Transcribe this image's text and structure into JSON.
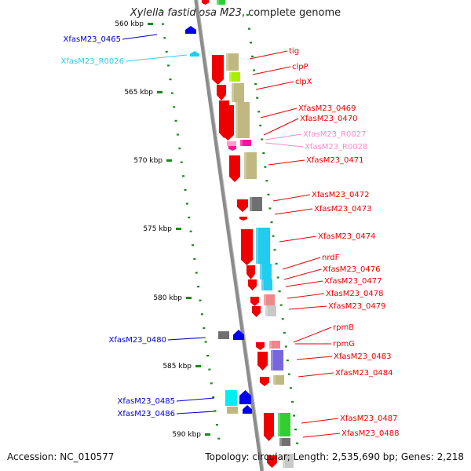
{
  "title": {
    "organism": "Xylella fastidiosa M23",
    "suffix": ", complete genome"
  },
  "footer": {
    "accession": "Accession: NC_010577",
    "summary": "Topology: circular; Length: 2,535,690 bp; Genes: 2,218"
  },
  "colors": {
    "backbone": "#8c8c8c",
    "tick_dot": "#1a8a1a",
    "label_blue": "#0000cc",
    "label_cyan": "#33ccee",
    "label_red": "#ee0000",
    "label_pink": "#ff88cc",
    "gene_red": "#ee0000",
    "gene_blue": "#0000ee",
    "gene_cyan": "#22ccee",
    "gene_pink": "#ff99cc",
    "cog_khaki": "#c0b880",
    "cog_green": "#33cc33",
    "cog_cyan": "#22ccee",
    "cog_gray": "#707070",
    "cog_lightgray": "#c8c8c8",
    "cog_purple": "#7766dd",
    "cog_pink": "#ee8888",
    "cog_magenta": "#ff1199",
    "cog_lime": "#aaee00"
  },
  "chart_data": {
    "type": "genome_map",
    "region_kbp": [
      560,
      591
    ],
    "tick_labels": [
      {
        "kbp": 560,
        "label": "560 kbp"
      },
      {
        "kbp": 565,
        "label": "565 kbp"
      },
      {
        "kbp": 570,
        "label": "570 kbp"
      },
      {
        "kbp": 575,
        "label": "575 kbp"
      },
      {
        "kbp": 580,
        "label": "580 kbp"
      },
      {
        "kbp": 585,
        "label": "585 kbp"
      },
      {
        "kbp": 590,
        "label": "590 kbp"
      }
    ],
    "genes_minus_strand": [
      {
        "name": "XfasM23_0465",
        "kind": "cds",
        "label_color": "blue"
      },
      {
        "name": "XfasM23_R0026",
        "kind": "rna",
        "label_color": "cyan"
      },
      {
        "name": "XfasM23_0480",
        "kind": "cds",
        "label_color": "blue"
      },
      {
        "name": "XfasM23_0485",
        "kind": "cds",
        "label_color": "blue"
      },
      {
        "name": "XfasM23_0486",
        "kind": "cds",
        "label_color": "blue"
      }
    ],
    "genes_plus_strand": [
      {
        "name": "tig",
        "kind": "cds",
        "label_color": "red"
      },
      {
        "name": "clpP",
        "kind": "cds",
        "label_color": "red"
      },
      {
        "name": "clpX",
        "kind": "cds",
        "label_color": "red"
      },
      {
        "name": "XfasM23_0469",
        "kind": "cds",
        "label_color": "red"
      },
      {
        "name": "XfasM23_0470",
        "kind": "cds",
        "label_color": "red"
      },
      {
        "name": "XfasM23_R0027",
        "kind": "rna",
        "label_color": "pink"
      },
      {
        "name": "XfasM23_R0028",
        "kind": "rna",
        "label_color": "pink"
      },
      {
        "name": "XfasM23_0471",
        "kind": "cds",
        "label_color": "red"
      },
      {
        "name": "XfasM23_0472",
        "kind": "cds",
        "label_color": "red"
      },
      {
        "name": "XfasM23_0473",
        "kind": "cds",
        "label_color": "red"
      },
      {
        "name": "XfasM23_0474",
        "kind": "cds",
        "label_color": "red"
      },
      {
        "name": "nrdF",
        "kind": "cds",
        "label_color": "red"
      },
      {
        "name": "XfasM23_0476",
        "kind": "cds",
        "label_color": "red"
      },
      {
        "name": "XfasM23_0477",
        "kind": "cds",
        "label_color": "red"
      },
      {
        "name": "XfasM23_0478",
        "kind": "cds",
        "label_color": "red"
      },
      {
        "name": "XfasM23_0479",
        "kind": "cds",
        "label_color": "red"
      },
      {
        "name": "rpmB",
        "kind": "cds",
        "label_color": "red"
      },
      {
        "name": "rpmG",
        "kind": "cds",
        "label_color": "red"
      },
      {
        "name": "XfasM23_0483",
        "kind": "cds",
        "label_color": "red"
      },
      {
        "name": "XfasM23_0484",
        "kind": "cds",
        "label_color": "red"
      },
      {
        "name": "XfasM23_0487",
        "kind": "cds",
        "label_color": "red"
      },
      {
        "name": "XfasM23_0488",
        "kind": "cds",
        "label_color": "red"
      }
    ]
  }
}
